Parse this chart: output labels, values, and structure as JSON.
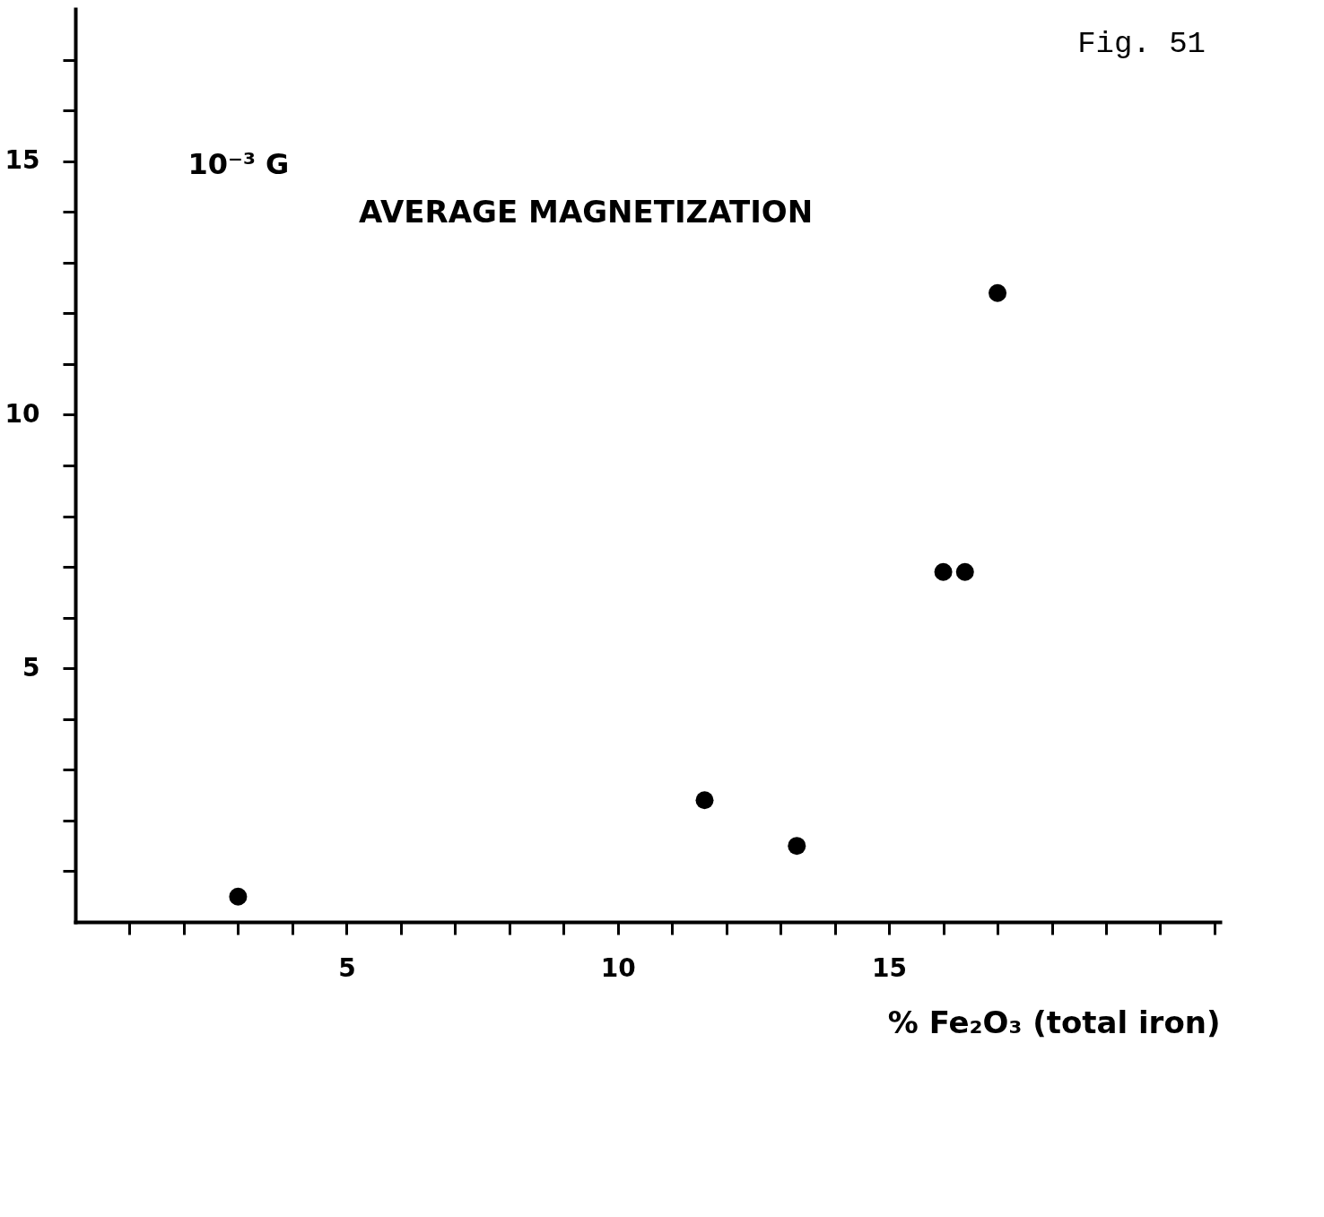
{
  "chart_data": {
    "type": "scatter",
    "title": "AVERAGE MAGNETIZATION",
    "ylabel": "10⁻³ G",
    "xlabel": "% Fe₂O₃ (total iron)",
    "annotations": [
      "Fig. 51"
    ],
    "x": [
      3,
      11.6,
      13.3,
      16,
      16.4,
      17
    ],
    "series": [
      {
        "color": "#000000",
        "values": [
          0.5,
          2.4,
          1.5,
          6.9,
          6.9,
          12.4
        ]
      }
    ],
    "marker": "circle",
    "grid": false,
    "legend": false,
    "xlim": [
      0,
      21.1
    ],
    "xticks": [
      {
        "value": 1,
        "label": null
      },
      {
        "value": 2,
        "label": null
      },
      {
        "value": 3,
        "label": null
      },
      {
        "value": 4,
        "label": null
      },
      5,
      {
        "value": 6,
        "label": null
      },
      {
        "value": 7,
        "label": null
      },
      {
        "value": 8,
        "label": null
      },
      {
        "value": 9,
        "label": null
      },
      10,
      {
        "value": 11,
        "label": null
      },
      {
        "value": 12,
        "label": null
      },
      {
        "value": 13,
        "label": null
      },
      {
        "value": 14,
        "label": null
      },
      15,
      {
        "value": 16,
        "label": null
      },
      {
        "value": 17,
        "label": null
      },
      {
        "value": 18,
        "label": null
      },
      {
        "value": 19,
        "label": null
      },
      {
        "value": 20,
        "label": null
      },
      {
        "value": 21,
        "label": null
      }
    ],
    "ylim": [
      0,
      18
    ],
    "yticks": [
      {
        "value": 1,
        "label": null
      },
      {
        "value": 2,
        "label": null
      },
      {
        "value": 3,
        "label": null
      },
      {
        "value": 4,
        "label": null
      },
      5,
      {
        "value": 6,
        "label": null
      },
      {
        "value": 7,
        "label": null
      },
      {
        "value": 8,
        "label": null
      },
      {
        "value": 9,
        "label": null
      },
      10,
      {
        "value": 11,
        "label": null
      },
      {
        "value": 12,
        "label": null
      },
      {
        "value": 13,
        "label": null
      },
      {
        "value": 14,
        "label": null
      },
      15,
      {
        "value": 16,
        "label": null
      },
      {
        "value": 17,
        "label": null
      }
    ]
  }
}
